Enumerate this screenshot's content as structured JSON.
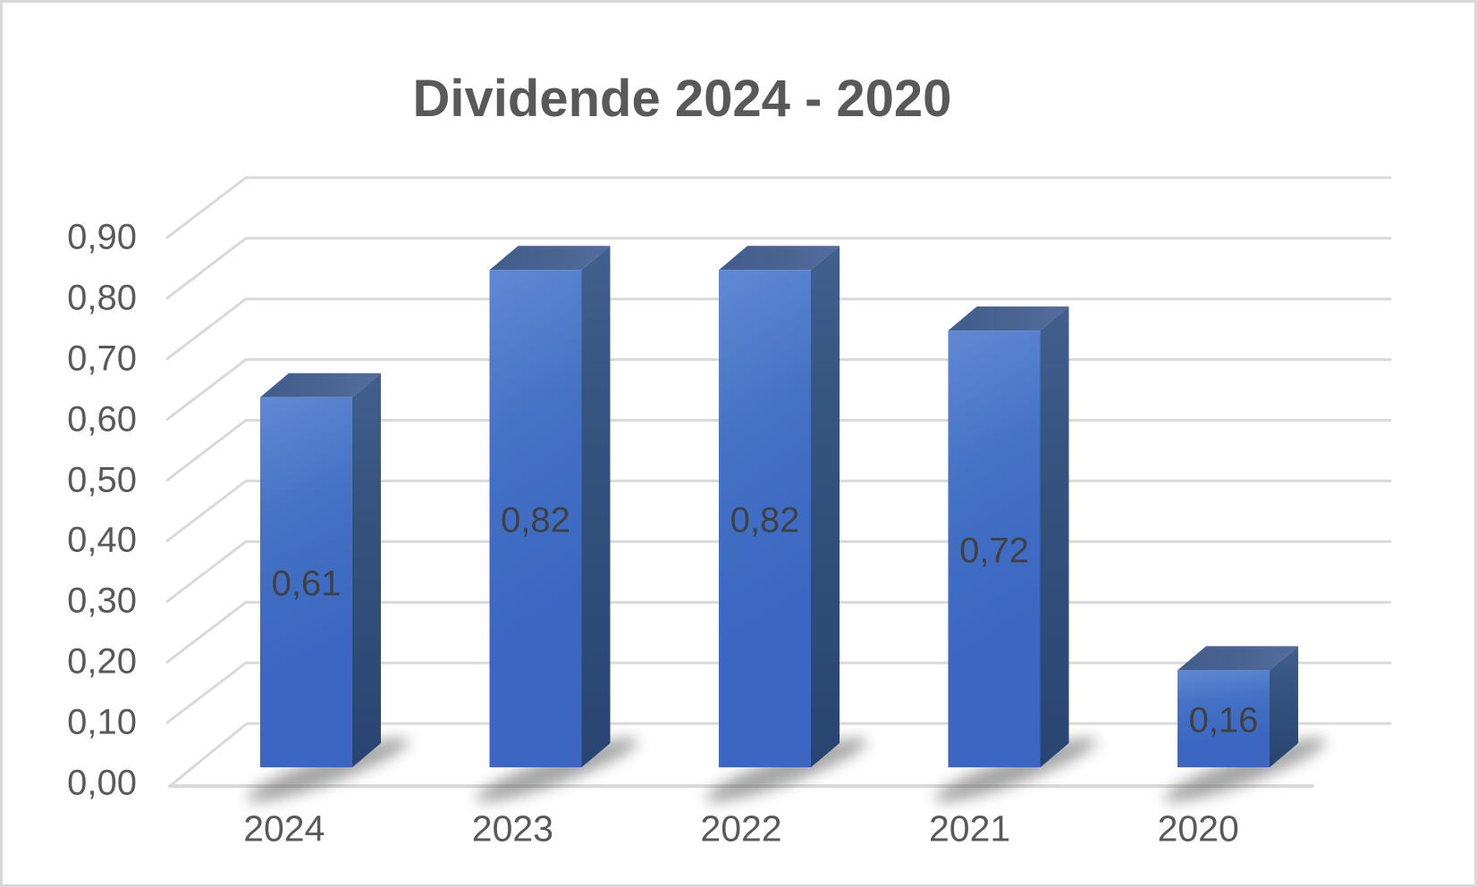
{
  "frame": {
    "background": "#ffffff",
    "border_color": "#d8d8d8"
  },
  "chart_data": {
    "type": "bar",
    "variant": "3d-column",
    "title": "Dividende 2024 - 2020",
    "categories": [
      "2024",
      "2023",
      "2022",
      "2021",
      "2020"
    ],
    "values": [
      0.61,
      0.82,
      0.82,
      0.72,
      0.16
    ],
    "value_labels": [
      "0,61",
      "0,82",
      "0,82",
      "0,72",
      "0,16"
    ],
    "y_ticks": [
      0.0,
      0.1,
      0.2,
      0.3,
      0.4,
      0.5,
      0.6,
      0.7,
      0.8,
      0.9
    ],
    "y_tick_labels": [
      "0,00",
      "0,10",
      "0,20",
      "0,30",
      "0,40",
      "0,50",
      "0,60",
      "0,70",
      "0,80",
      "0,90"
    ],
    "ylim": [
      0.0,
      0.9
    ],
    "xlabel": "",
    "ylabel": "",
    "grid": true,
    "legend": false,
    "decimal_separator": ",",
    "colors": {
      "bar_front_light": "#6089d4",
      "bar_front": "#4472c4",
      "bar_front_deep": "#3b67c2",
      "bar_top_dark": "#415d8c",
      "bar_top_light": "#546d9e",
      "bar_side_light": "#41608f",
      "bar_side_dark": "#294471",
      "gridline": "#d9d9d9",
      "title_text": "#595959",
      "axis_text": "#595959",
      "value_text": "#404040",
      "shadow": "#6b6b6b"
    }
  }
}
